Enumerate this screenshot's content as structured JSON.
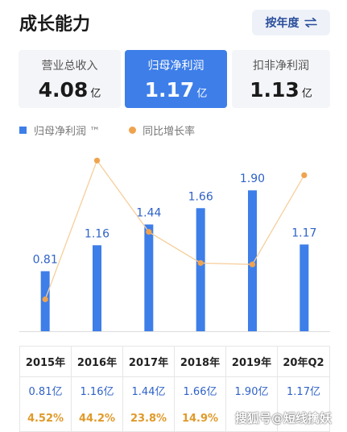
{
  "title": "成长能力",
  "period_button": {
    "label": "按年度",
    "icon": "swap-arrows-icon"
  },
  "metrics": [
    {
      "label": "营业总收入",
      "value": "4.08",
      "unit": "亿",
      "active": false
    },
    {
      "label": "归母净利润",
      "value": "1.17",
      "unit": "亿",
      "active": true
    },
    {
      "label": "扣非净利润",
      "value": "1.13",
      "unit": "亿",
      "active": false
    }
  ],
  "legend": {
    "bar": "归母净利润 ™",
    "line": "同比增长率"
  },
  "colors": {
    "bar": "#3d7ee9",
    "line": "#f0a34e",
    "line_stroke": "#f6cf9c",
    "accent_text": "#2f62c8"
  },
  "chart_data": {
    "type": "bar",
    "categories": [
      "2015年",
      "2016年",
      "2017年",
      "2018年",
      "2019年",
      "20年Q2"
    ],
    "series": [
      {
        "name": "归母净利润",
        "type": "bar",
        "values": [
          0.81,
          1.16,
          1.44,
          1.66,
          1.9,
          1.17
        ],
        "labels": [
          "0.81",
          "1.16",
          "1.44",
          "1.66",
          "1.90",
          "1.17"
        ]
      },
      {
        "name": "同比增长率",
        "type": "line",
        "values": [
          4.52,
          44.2,
          23.8,
          14.9,
          14.5,
          40.0
        ]
      }
    ]
  },
  "table": {
    "years": [
      "2015年",
      "2016年",
      "2017年",
      "2018年",
      "2019年",
      "20年Q2"
    ],
    "profit": [
      "0.81亿",
      "1.16亿",
      "1.44亿",
      "1.66亿",
      "1.90亿",
      "1.17亿"
    ],
    "growth": [
      "4.52%",
      "44.2%",
      "23.8%",
      "14.9%",
      "",
      ""
    ]
  },
  "watermark": "搜狐号@短线擒妖"
}
